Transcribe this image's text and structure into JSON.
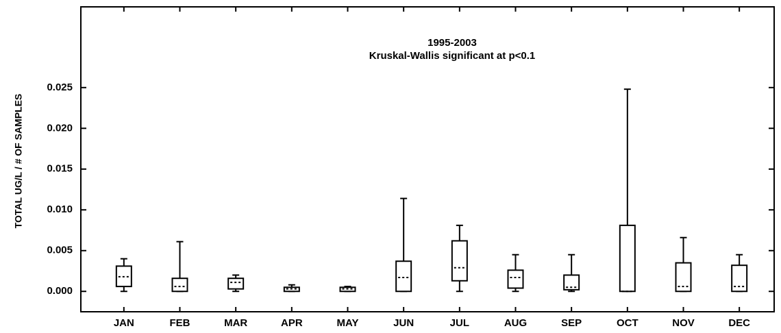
{
  "chart_data": {
    "type": "box",
    "title": [
      "1995-2003",
      "Kruskal-Wallis significant at p<0.1"
    ],
    "y_label": "TOTAL UG/L / # OF SAMPLES",
    "categories": [
      "JAN",
      "FEB",
      "MAR",
      "APR",
      "MAY",
      "JUN",
      "JUL",
      "AUG",
      "SEP",
      "OCT",
      "NOV",
      "DEC"
    ],
    "boxes": [
      {
        "low": 0,
        "q1": 0.0006,
        "median": 0.0018,
        "q3": 0.0031,
        "high": 0.004
      },
      {
        "low": 0,
        "q1": 0,
        "median": 0.0006,
        "q3": 0.0016,
        "high": 0.0061
      },
      {
        "low": 0,
        "q1": 0.0003,
        "median": 0.0011,
        "q3": 0.0016,
        "high": 0.002
      },
      {
        "low": 0,
        "q1": 0,
        "median": 0.0003,
        "q3": 0.0005,
        "high": 0.0008
      },
      {
        "low": 0,
        "q1": 0,
        "median": 0.0003,
        "q3": 0.0005,
        "high": 0.0006
      },
      {
        "low": 0,
        "q1": 0,
        "median": 0.0017,
        "q3": 0.0037,
        "high": 0.0114
      },
      {
        "low": 0,
        "q1": 0.0013,
        "median": 0.0029,
        "q3": 0.0062,
        "high": 0.0081
      },
      {
        "low": 0,
        "q1": 0.0004,
        "median": 0.0017,
        "q3": 0.0026,
        "high": 0.0045
      },
      {
        "low": 0,
        "q1": 0.0002,
        "median": 0.0005,
        "q3": 0.002,
        "high": 0.0045
      },
      {
        "low": 0,
        "q1": 0,
        "median": 0,
        "q3": 0.0081,
        "high": 0.0248
      },
      {
        "low": 0,
        "q1": 0,
        "median": 0.0006,
        "q3": 0.0035,
        "high": 0.0066
      },
      {
        "low": 0,
        "q1": 0,
        "median": 0.0006,
        "q3": 0.0032,
        "high": 0.0045
      }
    ],
    "color": "#000000",
    "ylim": [
      -0.0025,
      0.0349
    ],
    "yticks": [
      {
        "value": 0,
        "label": "0.000"
      },
      0.005,
      {
        "value": 0.01,
        "label": "0.010"
      },
      0.015,
      {
        "value": 0.02,
        "label": "0.020"
      },
      0.025
    ]
  }
}
